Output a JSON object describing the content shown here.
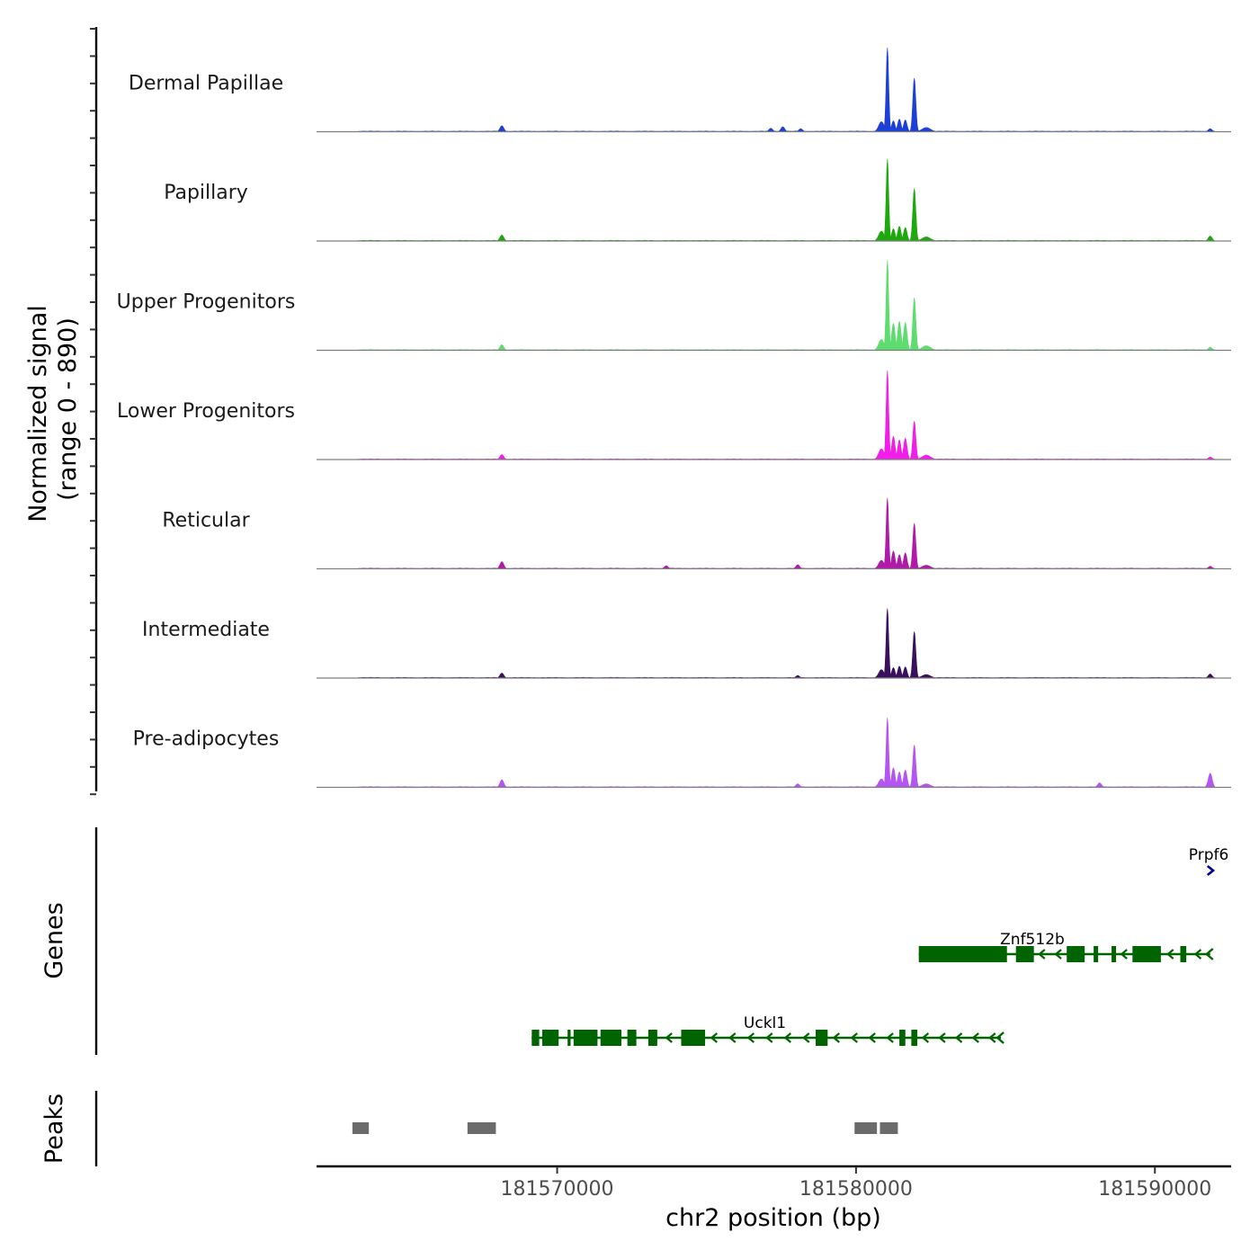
{
  "chart_data": {
    "type": "area",
    "title": "",
    "ylabel_line1": "Normalized signal",
    "ylabel_line2": "(range 0 - 890)",
    "ylim": [
      0,
      890
    ],
    "xlabel": "chr2 position (bp)",
    "xlim": [
      181561950,
      181592550
    ],
    "x_ticks": [
      181570000,
      181580000,
      181590000
    ],
    "x_tick_labels": [
      "181570000",
      "181580000",
      "181590000"
    ],
    "peak_shape": [
      {
        "x": 181580850,
        "rel": 0.12
      },
      {
        "x": 181581050,
        "rel": 1.0
      },
      {
        "x": 181581250,
        "rel": 0.18
      },
      {
        "x": 181581450,
        "rel": 0.18
      },
      {
        "x": 181581650,
        "rel": 0.18
      },
      {
        "x": 181581950,
        "rel": 0.6
      },
      {
        "x": 181582350,
        "rel": 0.05
      }
    ],
    "series": [
      {
        "name": "Dermal Papillae",
        "color": "#1d3fd6",
        "peak_max": 830,
        "peak2": 530,
        "mids": [
          0.13,
          0.15
        ],
        "minor": [
          {
            "x": 181563200,
            "h": 20
          },
          {
            "x": 181568150,
            "h": 60
          },
          {
            "x": 181577150,
            "h": 35
          },
          {
            "x": 181577550,
            "h": 50
          },
          {
            "x": 181578150,
            "h": 30
          },
          {
            "x": 181591850,
            "h": 30
          }
        ]
      },
      {
        "name": "Papillary",
        "color": "#1fa80e",
        "peak_max": 810,
        "peak2": 520,
        "mids": [
          0.15,
          0.18
        ],
        "minor": [
          {
            "x": 181568150,
            "h": 60
          },
          {
            "x": 181591850,
            "h": 50
          }
        ]
      },
      {
        "name": "Upper Progenitors",
        "color": "#5fdc6f",
        "peak_max": 890,
        "peak2": 520,
        "mids": [
          0.3,
          0.32
        ],
        "minor": [
          {
            "x": 181568150,
            "h": 55
          },
          {
            "x": 181591850,
            "h": 30
          }
        ]
      },
      {
        "name": "Lower Progenitors",
        "color": "#f01ee6",
        "peak_max": 880,
        "peak2": 380,
        "mids": [
          0.26,
          0.22
        ],
        "minor": [
          {
            "x": 181563200,
            "h": 20
          },
          {
            "x": 181568150,
            "h": 50
          },
          {
            "x": 181591850,
            "h": 25
          }
        ]
      },
      {
        "name": "Reticular",
        "color": "#b01aa8",
        "peak_max": 700,
        "peak2": 450,
        "mids": [
          0.25,
          0.2
        ],
        "minor": [
          {
            "x": 181568150,
            "h": 70
          },
          {
            "x": 181573650,
            "h": 30
          },
          {
            "x": 181578050,
            "h": 40
          },
          {
            "x": 181591850,
            "h": 25
          }
        ]
      },
      {
        "name": "Intermediate",
        "color": "#3a0f5c",
        "peak_max": 690,
        "peak2": 460,
        "mids": [
          0.15,
          0.17
        ],
        "minor": [
          {
            "x": 181563200,
            "h": 20
          },
          {
            "x": 181568150,
            "h": 50
          },
          {
            "x": 181578050,
            "h": 25
          },
          {
            "x": 181591850,
            "h": 40
          }
        ]
      },
      {
        "name": "Pre-adipocytes",
        "color": "#b455f2",
        "peak_max": 690,
        "peak2": 420,
        "mids": [
          0.28,
          0.22
        ],
        "minor": [
          {
            "x": 181568150,
            "h": 75
          },
          {
            "x": 181578050,
            "h": 35
          },
          {
            "x": 181588150,
            "h": 45
          },
          {
            "x": 181591850,
            "h": 140
          }
        ]
      }
    ],
    "genes_label": "Genes",
    "genes": [
      {
        "name": "Prpf6",
        "strand": "+",
        "start": 181591700,
        "end": 181591950,
        "color": "#00008b",
        "row": 0,
        "exons": []
      },
      {
        "name": "Znf512b",
        "strand": "-",
        "start": 181582100,
        "end": 181591850,
        "color": "#006400",
        "row": 1,
        "exons": [
          [
            181582100,
            181585050
          ],
          [
            181585350,
            181585950
          ],
          [
            181587050,
            181587650
          ],
          [
            181587950,
            181588100
          ],
          [
            181588550,
            181588700
          ],
          [
            181589250,
            181590200
          ],
          [
            181590850,
            181591050
          ]
        ]
      },
      {
        "name": "Uckl1",
        "strand": "-",
        "start": 181569150,
        "end": 181584850,
        "color": "#006400",
        "row": 2,
        "exons": [
          [
            181569150,
            181569400
          ],
          [
            181569500,
            181570050
          ],
          [
            181570350,
            181570450
          ],
          [
            181570550,
            181571350
          ],
          [
            181571450,
            181572150
          ],
          [
            181572350,
            181572650
          ],
          [
            181573050,
            181573350
          ],
          [
            181574150,
            181574950
          ],
          [
            181578650,
            181579050
          ],
          [
            181581450,
            181581650
          ],
          [
            181581850,
            181582050
          ]
        ]
      }
    ],
    "peaks_label": "Peaks",
    "peaks": [
      [
        181563150,
        181563700
      ],
      [
        181567000,
        181567950
      ],
      [
        181579950,
        181580700
      ],
      [
        181580800,
        181581400
      ]
    ]
  }
}
